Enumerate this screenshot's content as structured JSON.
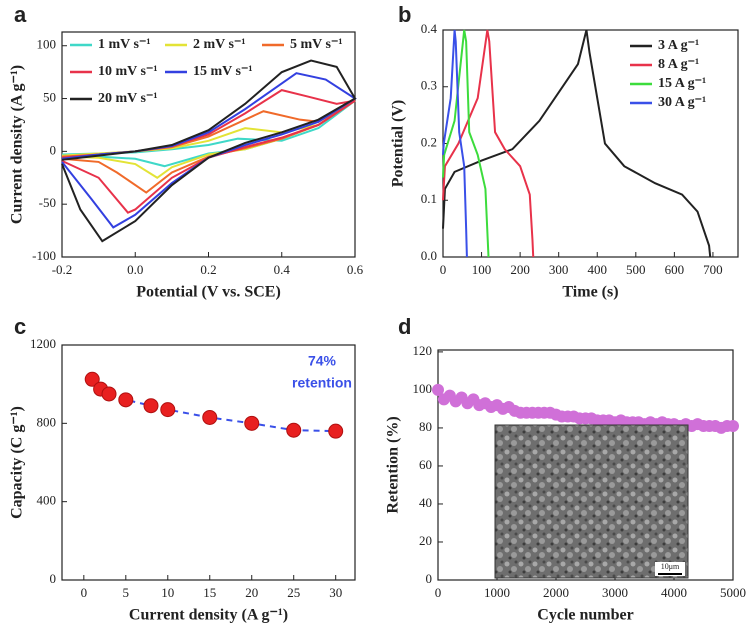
{
  "chart_data": [
    {
      "type": "line",
      "panel": "a",
      "x_label": "Potential (V vs. SCE)",
      "y_label": "Current density (A g⁻¹)",
      "xlim": [
        -0.2,
        0.6
      ],
      "xticks": [
        -0.2,
        {
          "value": 0,
          "label": "0.0"
        },
        0.2,
        0.4,
        0.6
      ],
      "ylim": [
        -100,
        113
      ],
      "yticks": [
        -100,
        -50,
        0,
        50,
        100
      ],
      "series": [
        {
          "name": "1 mV s⁻¹",
          "color": "#3fd8c8",
          "x": [
            -0.2,
            -0.1,
            0,
            0.1,
            0.2,
            0.28,
            0.4,
            0.5,
            0.6,
            0.5,
            0.4,
            0.3,
            0.2,
            0.08,
            0,
            -0.1,
            -0.2
          ],
          "values": [
            -3,
            -2,
            -1,
            2,
            6,
            12,
            10,
            22,
            48,
            25,
            12,
            2,
            -2,
            -14,
            -7,
            -5,
            -4
          ]
        },
        {
          "name": "2 mV s⁻¹",
          "color": "#e3e336",
          "x": [
            -0.2,
            -0.1,
            0,
            0.1,
            0.2,
            0.3,
            0.4,
            0.5,
            0.6,
            0.5,
            0.4,
            0.3,
            0.2,
            0.1,
            0.06,
            0,
            -0.1,
            -0.2
          ],
          "values": [
            -4,
            -2,
            0,
            3,
            10,
            22,
            18,
            25,
            48,
            25,
            12,
            2,
            -3,
            -15,
            -25,
            -12,
            -6,
            -5
          ]
        },
        {
          "name": "5 mV s⁻¹",
          "color": "#f06a2a",
          "x": [
            -0.2,
            -0.1,
            0,
            0.1,
            0.2,
            0.35,
            0.45,
            0.5,
            0.6,
            0.5,
            0.4,
            0.3,
            0.2,
            0.1,
            0.03,
            -0.05,
            -0.1,
            -0.2
          ],
          "values": [
            -5,
            -3,
            0,
            4,
            14,
            38,
            30,
            28,
            48,
            25,
            12,
            3,
            -5,
            -20,
            -39,
            -20,
            -10,
            -7
          ]
        },
        {
          "name": "10 mV s⁻¹",
          "color": "#e8324a",
          "x": [
            -0.2,
            -0.1,
            0,
            0.1,
            0.2,
            0.3,
            0.4,
            0.47,
            0.55,
            0.6,
            0.5,
            0.4,
            0.3,
            0.2,
            0.1,
            0,
            -0.02,
            -0.1,
            -0.2
          ],
          "values": [
            -6,
            -3,
            0,
            5,
            16,
            36,
            58,
            52,
            45,
            48,
            25,
            13,
            4,
            -6,
            -25,
            -55,
            -58,
            -25,
            -9
          ]
        },
        {
          "name": "15 mV s⁻¹",
          "color": "#3340e0",
          "x": [
            -0.2,
            -0.1,
            0,
            0.1,
            0.2,
            0.3,
            0.44,
            0.52,
            0.6,
            0.5,
            0.4,
            0.3,
            0.2,
            0.1,
            0,
            -0.06,
            -0.12,
            -0.2
          ],
          "values": [
            -7,
            -3,
            0,
            5,
            18,
            40,
            74,
            68,
            50,
            28,
            16,
            6,
            -6,
            -30,
            -60,
            -72,
            -45,
            -10
          ]
        },
        {
          "name": "20 mV s⁻¹",
          "color": "#222222",
          "x": [
            -0.2,
            -0.1,
            0,
            0.1,
            0.2,
            0.3,
            0.4,
            0.48,
            0.55,
            0.6,
            0.5,
            0.4,
            0.3,
            0.2,
            0.1,
            0,
            -0.09,
            -0.15,
            -0.2
          ],
          "values": [
            -8,
            -4,
            0,
            6,
            20,
            45,
            75,
            86,
            80,
            50,
            30,
            18,
            8,
            -6,
            -32,
            -66,
            -85,
            -55,
            -12
          ]
        }
      ]
    },
    {
      "type": "line",
      "panel": "b",
      "x_label": "Time (s)",
      "y_label": "Potential (V)",
      "xlim": [
        0,
        765
      ],
      "xticks": [
        0,
        100,
        200,
        300,
        400,
        500,
        600,
        700
      ],
      "ylim": [
        0,
        0.4
      ],
      "yticks": [
        {
          "value": 0,
          "label": "0.0"
        },
        0.1,
        0.2,
        0.3,
        0.4
      ],
      "series": [
        {
          "name": "3 A g⁻¹",
          "color": "#222222",
          "x": [
            0,
            5,
            30,
            100,
            180,
            250,
            300,
            350,
            372,
            380,
            420,
            470,
            550,
            620,
            660,
            690,
            693
          ],
          "values": [
            0.05,
            0.12,
            0.15,
            0.17,
            0.19,
            0.24,
            0.29,
            0.34,
            0.4,
            0.36,
            0.2,
            0.16,
            0.13,
            0.11,
            0.08,
            0.02,
            0
          ]
        },
        {
          "name": "8 A g⁻¹",
          "color": "#e8324a",
          "x": [
            0,
            5,
            40,
            90,
            115,
            120,
            135,
            160,
            200,
            225,
            232,
            234
          ],
          "values": [
            0.1,
            0.16,
            0.2,
            0.28,
            0.4,
            0.38,
            0.22,
            0.19,
            0.16,
            0.11,
            0.03,
            0
          ]
        },
        {
          "name": "15 A g⁻¹",
          "color": "#3cdc3c",
          "x": [
            0,
            3,
            30,
            55,
            60,
            68,
            90,
            110,
            116,
            118
          ],
          "values": [
            0.14,
            0.18,
            0.24,
            0.4,
            0.38,
            0.22,
            0.18,
            0.12,
            0.03,
            0
          ]
        },
        {
          "name": "30 A g⁻¹",
          "color": "#3a50e8",
          "x": [
            0,
            2,
            20,
            30,
            33,
            42,
            55,
            60,
            62
          ],
          "values": [
            0.18,
            0.2,
            0.28,
            0.4,
            0.38,
            0.22,
            0.16,
            0.05,
            0
          ]
        }
      ]
    },
    {
      "type": "scatter",
      "panel": "c",
      "x_label": "Current density (A g⁻¹)",
      "y_label": "Capacity (C g⁻¹)",
      "xlim": [
        -2.6,
        32.3
      ],
      "xticks": [
        0,
        5,
        10,
        15,
        20,
        25,
        30
      ],
      "ylim": [
        0,
        1200
      ],
      "yticks": [
        0,
        400,
        800,
        1200
      ],
      "x": [
        1,
        2,
        3,
        5,
        8,
        10,
        15,
        20,
        25,
        30
      ],
      "values": [
        1025,
        975,
        950,
        920,
        890,
        870,
        830,
        800,
        765,
        760
      ],
      "color": "#e82020",
      "line_color": "#3a50e8",
      "line_style": "dashed",
      "annotations": [
        "74%",
        "retention"
      ]
    },
    {
      "type": "scatter",
      "panel": "d",
      "x_label": "Cycle number",
      "y_label": "Retention (%)",
      "xlim": [
        0,
        5000
      ],
      "xticks": [
        0,
        1000,
        2000,
        3000,
        4000,
        5000
      ],
      "ylim": [
        0,
        121
      ],
      "yticks": [
        0,
        20,
        40,
        60,
        80,
        100,
        120
      ],
      "x": [
        0,
        100,
        200,
        300,
        400,
        500,
        600,
        700,
        800,
        900,
        1000,
        1100,
        1200,
        1300,
        1400,
        1500,
        1600,
        1700,
        1800,
        1900,
        2000,
        2100,
        2200,
        2300,
        2400,
        2500,
        2600,
        2700,
        2800,
        2900,
        3000,
        3100,
        3200,
        3300,
        3400,
        3500,
        3600,
        3700,
        3800,
        3900,
        4000,
        4100,
        4200,
        4300,
        4400,
        4500,
        4600,
        4700,
        4800,
        4900,
        5000
      ],
      "values": [
        100,
        95,
        97,
        94,
        96,
        93,
        95,
        92,
        93,
        91,
        92,
        90,
        91,
        89,
        88,
        88,
        88,
        88,
        88,
        88,
        87,
        86,
        86,
        86,
        85,
        85,
        85,
        84,
        84,
        84,
        83,
        84,
        83,
        83,
        83,
        82,
        83,
        82,
        83,
        82,
        82,
        81,
        82,
        81,
        82,
        81,
        81,
        81,
        80,
        81,
        81
      ],
      "color": "#d070d8",
      "inset_label": "10μm"
    }
  ]
}
